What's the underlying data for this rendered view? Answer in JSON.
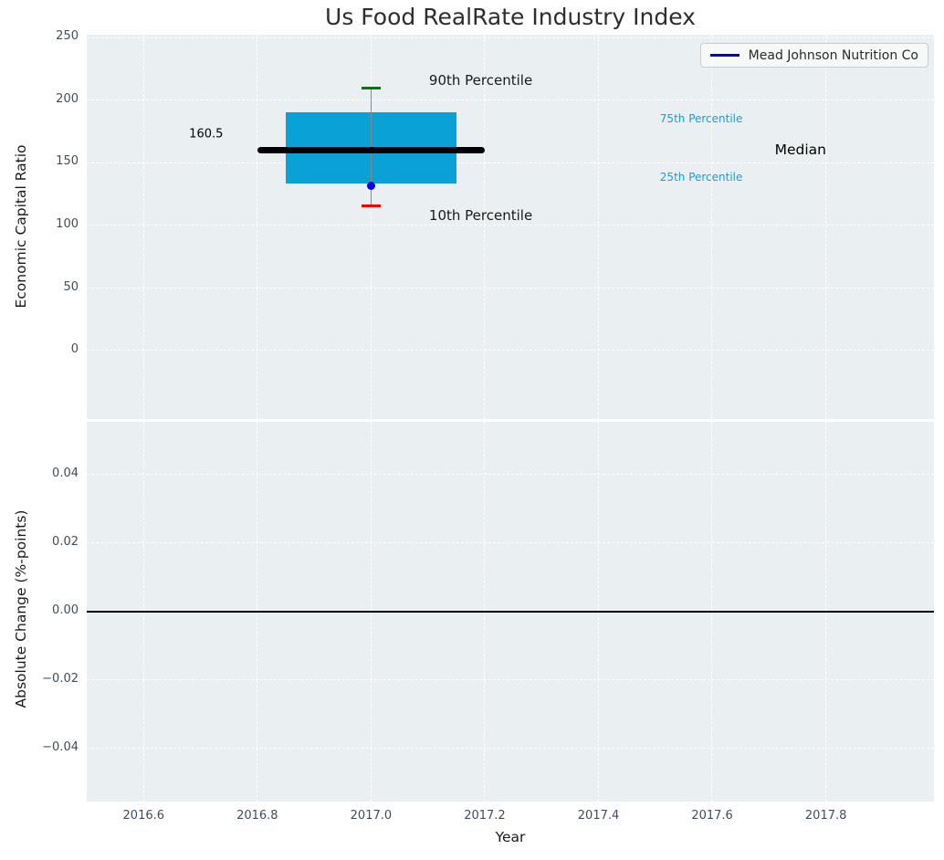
{
  "figure": {
    "title": "Us Food RealRate Industry Index",
    "background": "#ffffff",
    "axes_background": "#eaeff1",
    "grid_color": "#ffffff",
    "tick_color": "#3f4d5c",
    "label_color": "#1a1a1a"
  },
  "legend": {
    "label": "Mead Johnson Nutrition Co",
    "line_color": "#0000dd",
    "position": "upper right"
  },
  "chart_data": [
    {
      "type": "boxplot",
      "title": "Us Food RealRate Industry Index",
      "xlabel": "Year",
      "ylabel": "Economic Capital Ratio",
      "xlim": [
        2016.5,
        2017.99
      ],
      "ylim": [
        -54.6,
        252.4
      ],
      "xtick_values": [
        2016.6,
        2016.8,
        2017.0,
        2017.2,
        2017.4,
        2017.6,
        2017.8
      ],
      "xtick_labels": [
        "2016.6",
        "2016.8",
        "2017.0",
        "2017.2",
        "2017.4",
        "2017.6",
        "2017.8"
      ],
      "ytick_values": [
        0,
        50,
        100,
        150,
        200,
        250
      ],
      "ytick_labels": [
        "0",
        "50",
        "100",
        "150",
        "200",
        "250"
      ],
      "grid": "white dashed, on",
      "legend_position": "upper right",
      "box": {
        "x": 2017.0,
        "p90": 209.5,
        "p75": 190.3,
        "median": 160.5,
        "p25": 133.2,
        "p10": 116,
        "company": "Mead Johnson Nutrition Co",
        "company_value": 132,
        "box_half_width_years": 0.15,
        "median_half_width_years": 0.2,
        "colors": {
          "box": "#09a1d6",
          "median": "#000000",
          "whisker": "#8a8a8a",
          "p90_cap": "#007d00",
          "p10_cap": "#ff0000",
          "company_dot": "#0000e0"
        }
      },
      "annotations": [
        {
          "text": "160.5",
          "x": 2016.71,
          "y": 173,
          "color": "#000000",
          "size": 13,
          "anchor": "center"
        },
        {
          "text": "90th Percentile",
          "x": 2017.102,
          "y": 216,
          "color": "#1a1a1a",
          "size": 15,
          "anchor": "left"
        },
        {
          "text": "10th Percentile",
          "x": 2017.102,
          "y": 108,
          "color": "#1a1a1a",
          "size": 15,
          "anchor": "left"
        },
        {
          "text": "75th Percentile",
          "x": 2017.508,
          "y": 185,
          "color": "#1b9ecb",
          "size": 12,
          "anchor": "left"
        },
        {
          "text": "25th Percentile",
          "x": 2017.508,
          "y": 139,
          "color": "#1b9ecb",
          "size": 12,
          "anchor": "left"
        },
        {
          "text": "Median",
          "x": 2017.71,
          "y": 160.5,
          "color": "#000000",
          "size": 15.5,
          "anchor": "left"
        }
      ]
    },
    {
      "type": "line",
      "xlabel": "Year",
      "ylabel": "Absolute Change (%-points)",
      "xlim": [
        2016.5,
        2017.99
      ],
      "ylim": [
        -0.0555,
        0.0555
      ],
      "ytick_values": [
        0.04,
        0.02,
        0.0,
        -0.02,
        -0.04
      ],
      "ytick_labels": [
        "0.04",
        "0.02",
        "0.00",
        "−0.02",
        "−0.04"
      ],
      "grid": "white dashed, on",
      "zero_line": 0.0,
      "series": []
    }
  ]
}
